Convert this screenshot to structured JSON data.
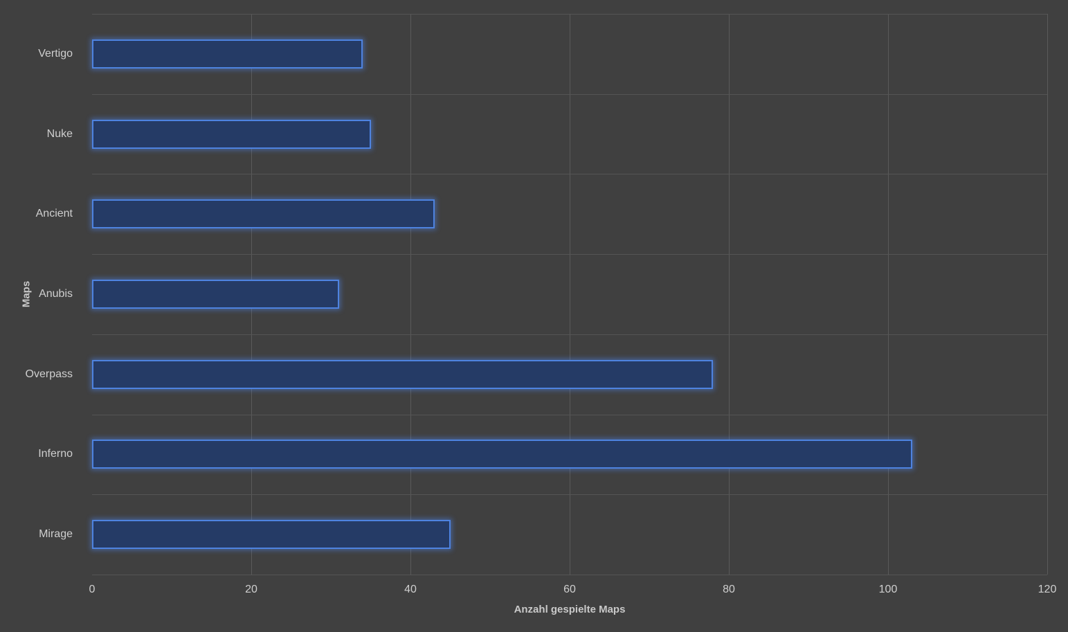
{
  "chart": {
    "background_color": "#404040",
    "gridline_color": "#5a5a5a",
    "bar_fill_color": "#253b66",
    "bar_border_color": "#4e83e0",
    "bar_glow_color": "rgba(80,140,255,0.45)",
    "label_color": "#cfcfcf",
    "x_axis_title": "Anzahl gespielte Maps",
    "y_axis_title": "Maps"
  },
  "chart_data": {
    "type": "bar",
    "orientation": "horizontal",
    "title": "",
    "xlabel": "Anzahl gespielte Maps",
    "ylabel": "Maps",
    "categories": [
      "Vertigo",
      "Nuke",
      "Ancient",
      "Anubis",
      "Overpass",
      "Inferno",
      "Mirage"
    ],
    "values": [
      34,
      35,
      43,
      31,
      78,
      103,
      45
    ],
    "xlim": [
      0,
      120
    ],
    "xticks": [
      0,
      20,
      40,
      60,
      80,
      100,
      120
    ],
    "grid": true,
    "legend": false
  }
}
